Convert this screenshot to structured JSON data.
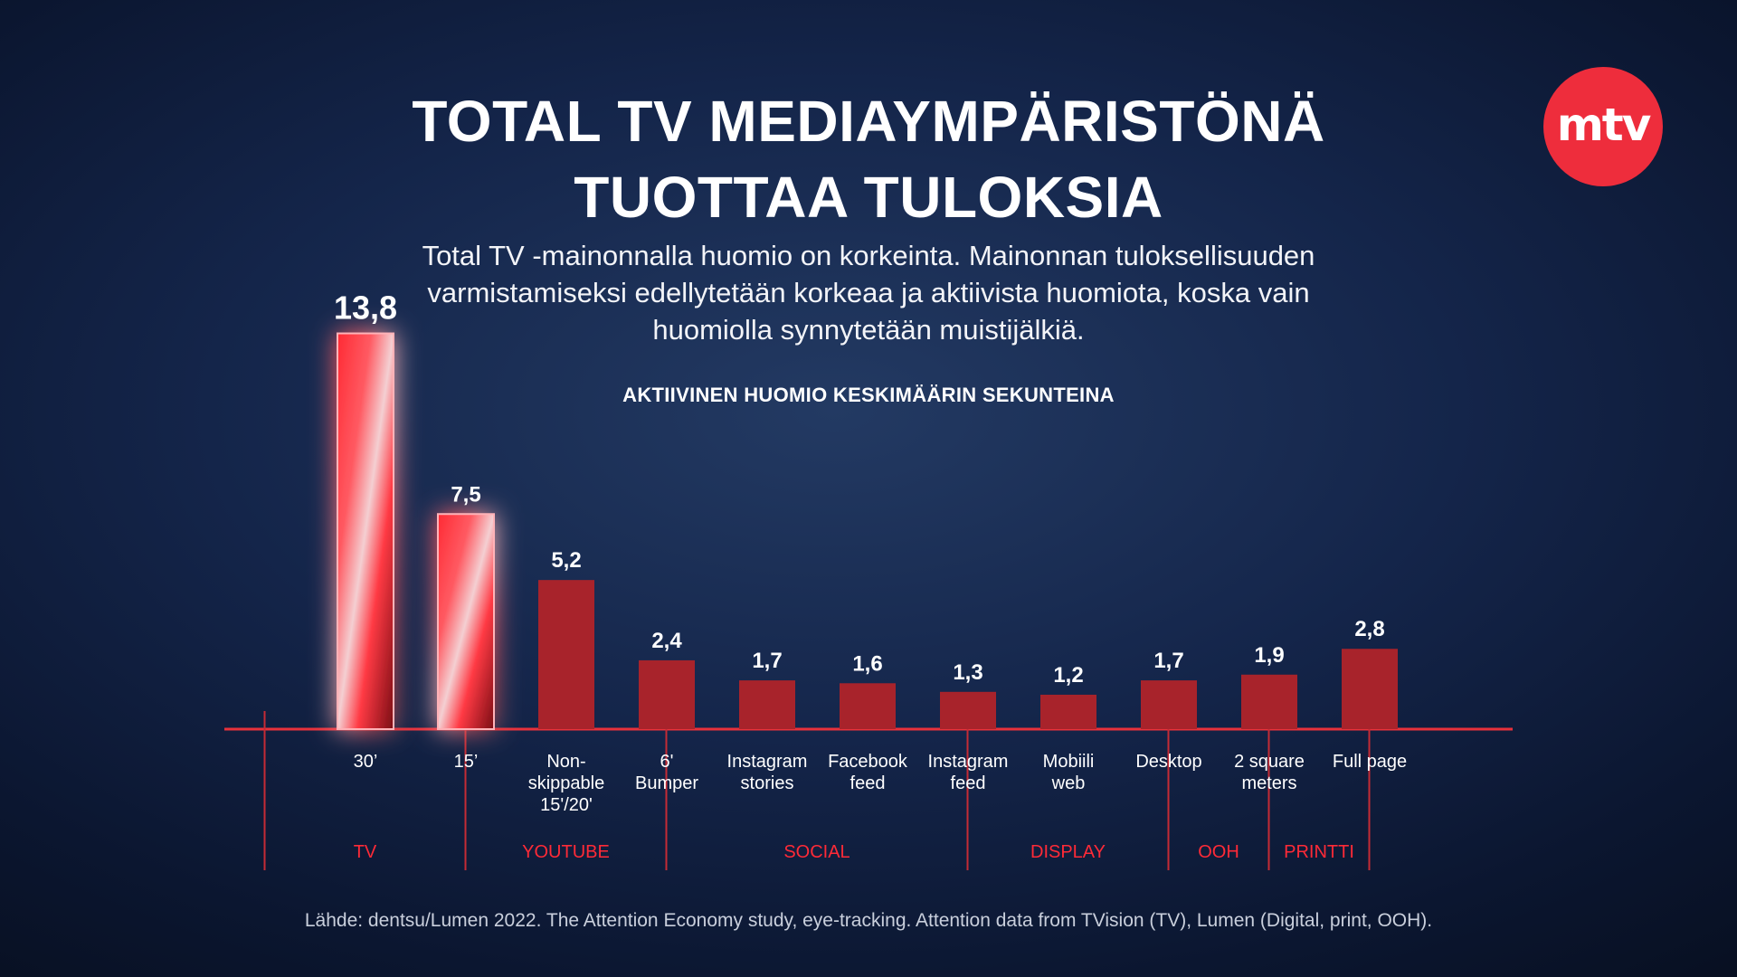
{
  "header": {
    "title_line1": "TOTAL TV MEDIAYMPÄRISTÖNÄ",
    "title_line2": "TUOTTAA TULOKSIA",
    "subtitle_line1": "Total TV -mainonnalla huomio on korkeinta. Mainonnan tuloksellisuuden",
    "subtitle_line2": "varmistamiseksi edellytetään korkeaa ja aktiivista huomiota, koska vain",
    "subtitle_line3": "huomiolla synnytetään muistijälkiä.",
    "logo_text": "mtv"
  },
  "source": "Lähde: dentsu/Lumen 2022. The Attention Economy study, eye-tracking. Attention data from TVision (TV), Lumen (Digital, print, OOH).",
  "colors": {
    "accent_red": "#ff2a37",
    "bar_red": "#a8232b",
    "logo_red": "#ee2d3c"
  },
  "chart_data": {
    "type": "bar",
    "title": "AKTIIVINEN HUOMIO KESKIMÄÄRIN SEKUNTEINA",
    "xlabel": "",
    "ylabel": "",
    "ylim": [
      0,
      14
    ],
    "grid": false,
    "categories": [
      [
        "30’"
      ],
      [
        "15’"
      ],
      [
        "Non-",
        "skippable",
        "15'/20'"
      ],
      [
        "6'",
        "Bumper"
      ],
      [
        "Instagram",
        "stories"
      ],
      [
        "Facebook",
        "feed"
      ],
      [
        "Instagram",
        "feed"
      ],
      [
        "Mobiili",
        "web"
      ],
      [
        "Desktop"
      ],
      [
        "2 square",
        "meters"
      ],
      [
        "Full page"
      ]
    ],
    "values": [
      13.8,
      7.5,
      5.2,
      2.4,
      1.7,
      1.6,
      1.3,
      1.2,
      1.7,
      1.9,
      2.8
    ],
    "value_labels": [
      "13,8",
      "7,5",
      "5,2",
      "2,4",
      "1,7",
      "1,6",
      "1,3",
      "1,2",
      "1,7",
      "1,9",
      "2,8"
    ],
    "highlighted": [
      true,
      true,
      false,
      false,
      false,
      false,
      false,
      false,
      false,
      false,
      false
    ],
    "groups": [
      {
        "name": "TV",
        "count": 2
      },
      {
        "name": "YOUTUBE",
        "count": 2
      },
      {
        "name": "SOCIAL",
        "count": 3
      },
      {
        "name": "DISPLAY",
        "count": 2
      },
      {
        "name": "OOH",
        "count": 1
      },
      {
        "name": "PRINTTI",
        "count": 1
      }
    ]
  }
}
